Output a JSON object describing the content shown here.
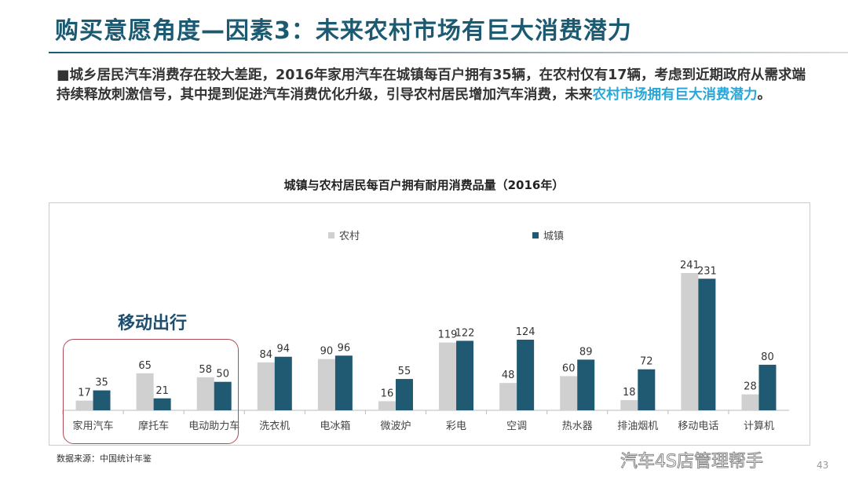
{
  "header": {
    "title": "购买意愿角度—因素3：未来农村市场有巨大消费潜力"
  },
  "body": {
    "text_main": "■城乡居民汽车消费存在较大差距，2016年家用汽车在城镇每百户拥有35辆，在农村仅有17辆，考虑到近期政府从需求端持续释放刺激信号，其中提到促进汽车消费优化升级，引导农村居民增加汽车消费，未来",
    "text_highlight": "农村市场拥有巨大消费潜力",
    "text_end": "。"
  },
  "annotation": {
    "group_label": "移动出行"
  },
  "footer": {
    "source": "数据来源：中国统计年鉴",
    "page": "43",
    "watermark": "汽车4S店管理帮手"
  },
  "colors": {
    "rural": "#d1d0d1",
    "urban": "#1f5a72",
    "title": "#1c5a72",
    "highlight": "#29a7d8"
  },
  "chart_data": {
    "type": "bar",
    "title": "城镇与农村居民每百户拥有耐用消费品量（2016年）",
    "categories": [
      "家用汽车",
      "摩托车",
      "电动助力车",
      "洗衣机",
      "电冰箱",
      "微波炉",
      "彩电",
      "空调",
      "热水器",
      "排油烟机",
      "移动电话",
      "计算机"
    ],
    "series": [
      {
        "name": "农村",
        "values": [
          17,
          65,
          58,
          84,
          90,
          16,
          119,
          48,
          60,
          18,
          241,
          28
        ]
      },
      {
        "name": "城镇",
        "values": [
          35,
          21,
          50,
          94,
          96,
          55,
          122,
          124,
          89,
          72,
          231,
          80
        ]
      }
    ],
    "legend": "top",
    "grid": false
  }
}
